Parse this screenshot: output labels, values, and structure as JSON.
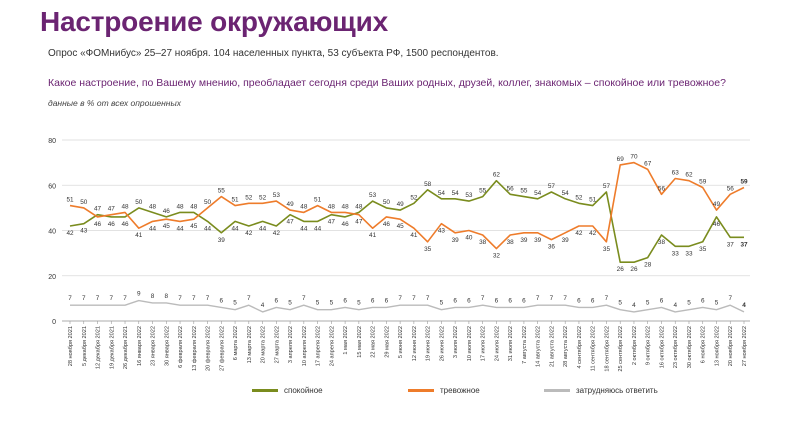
{
  "header": {
    "title": "Настроение окружающих",
    "subtitle": "Опрос «ФОМнибус» 25–27 ноября. 104 населенных пункта, 53 субъекта РФ, 1500 респондентов.",
    "question": "Какое настроение, по Вашему мнению, преобладает сегодня среди Ваших родных, друзей, коллег, знакомых – спокойное или тревожное?",
    "note": "данные в % от всех опрошенных"
  },
  "chart_data": {
    "type": "line",
    "ylim": [
      0,
      80
    ],
    "yticks": [
      0,
      20,
      40,
      60,
      80
    ],
    "categories": [
      "28 ноября 2021",
      "5 декабря 2021",
      "12 декабря 2021",
      "19 декабря 2021",
      "26 декабря 2021",
      "16 января 2022",
      "23 января 2022",
      "30 января 2022",
      "6 февраля 2022",
      "13 февраля 2022",
      "20 февраля 2022",
      "27 февраля 2022",
      "6 марта 2022",
      "13 марта 2022",
      "20 марта 2022",
      "27 марта 2022",
      "3 апреля 2022",
      "10 апреля 2022",
      "17 апреля 2022",
      "24 апреля 2022",
      "1 мая 2022",
      "15 мая 2022",
      "22 мая 2022",
      "29 мая 2022",
      "5 июня 2022",
      "12 июня 2022",
      "19 июня 2022",
      "26 июня 2022",
      "3 июля 2022",
      "10 июля 2022",
      "17 июля 2022",
      "24 июля 2022",
      "31 июля 2022",
      "7 августа 2022",
      "14 августа 2022",
      "21 августа 2022",
      "28 августа 2022",
      "4 сентября 2022",
      "11 сентября 2022",
      "18 сентября 2022",
      "25 сентября 2022",
      "2 октября 2022",
      "9 октября 2022",
      "16 октября 2022",
      "23 октября 2022",
      "30 октября 2022",
      "6 ноября 2022",
      "13 ноября 2022",
      "20 ноября 2022",
      "27 ноября 2022"
    ],
    "series": [
      {
        "name": "спокойное",
        "color": "#7a8c1e",
        "values": [
          42,
          43,
          47,
          46,
          46,
          50,
          48,
          46,
          48,
          48,
          44,
          39,
          44,
          42,
          44,
          42,
          47,
          44,
          44,
          47,
          46,
          48,
          53,
          50,
          49,
          52,
          58,
          54,
          54,
          53,
          55,
          62,
          56,
          55,
          54,
          57,
          54,
          52,
          51,
          57,
          26,
          26,
          28,
          38,
          33,
          33,
          35,
          46,
          37,
          37
        ]
      },
      {
        "name": "тревожное",
        "color": "#ee7c2b",
        "values": [
          51,
          50,
          46,
          47,
          48,
          41,
          44,
          45,
          44,
          45,
          50,
          55,
          51,
          52,
          52,
          53,
          49,
          48,
          51,
          48,
          48,
          47,
          41,
          46,
          45,
          41,
          35,
          43,
          39,
          40,
          38,
          32,
          38,
          39,
          39,
          36,
          39,
          42,
          42,
          35,
          69,
          70,
          67,
          56,
          63,
          62,
          59,
          49,
          56,
          59
        ]
      },
      {
        "name": "затрудняюсь ответить",
        "color": "#bbbbbb",
        "values": [
          7,
          7,
          7,
          7,
          7,
          9,
          8,
          8,
          7,
          7,
          7,
          6,
          5,
          7,
          4,
          6,
          5,
          7,
          5,
          5,
          6,
          5,
          6,
          6,
          7,
          7,
          7,
          5,
          6,
          6,
          7,
          6,
          6,
          6,
          7,
          7,
          7,
          6,
          6,
          7,
          5,
          4,
          5,
          6,
          4,
          5,
          6,
          5,
          7,
          4
        ]
      }
    ]
  }
}
